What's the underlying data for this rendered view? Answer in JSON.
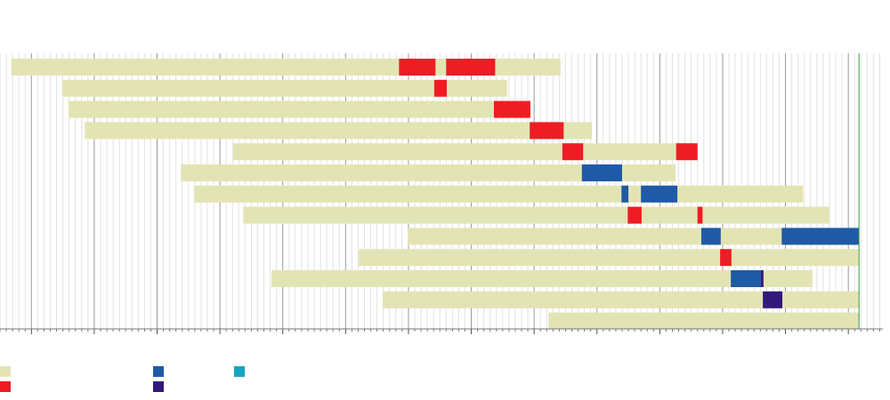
{
  "chart_data": {
    "type": "gantt",
    "xlim": [
      0,
      140.5
    ],
    "xticks": [
      5,
      15,
      25,
      35,
      45,
      55,
      65,
      75,
      85,
      95,
      105,
      115,
      125,
      135
    ],
    "xminorticks": [
      0,
      1,
      2,
      3,
      4,
      6,
      7,
      8,
      9,
      10,
      11,
      12,
      13,
      14,
      16,
      17,
      18,
      19,
      20,
      21,
      22,
      23,
      24,
      26,
      27,
      28,
      29,
      30,
      31,
      32,
      33,
      34,
      36,
      37,
      38,
      39,
      40,
      41,
      42,
      43,
      44,
      46,
      47,
      48,
      49,
      50,
      51,
      52,
      53,
      54,
      56,
      57,
      58,
      59,
      60,
      61,
      62,
      63,
      64,
      66,
      67,
      68,
      69,
      70,
      71,
      72,
      73,
      74,
      76,
      77,
      78,
      79,
      80,
      81,
      82,
      83,
      84,
      86,
      87,
      88,
      89,
      90,
      91,
      92,
      93,
      94,
      96,
      97,
      98,
      99,
      100,
      101,
      102,
      103,
      104,
      106,
      107,
      108,
      109,
      110,
      111,
      112,
      113,
      114,
      116,
      117,
      118,
      119,
      120,
      121,
      122,
      123,
      124,
      126,
      127,
      128,
      129,
      130,
      131,
      132,
      133,
      134,
      136,
      137,
      138,
      139,
      140
    ],
    "grid": true,
    "marker": 136.7,
    "marker_color": "#2e9e3e",
    "base_color": "#e3e4b4",
    "legend": [
      "#e3e4b4",
      "#ee1c24",
      "#1f5aa6",
      "#33197a",
      "#1aa3c1"
    ],
    "rows": [
      {
        "start": 1.8,
        "end": 89.2,
        "segments": [
          {
            "start": 63.5,
            "end": 69.3,
            "color": "#ee1c24"
          },
          {
            "start": 71.0,
            "end": 78.8,
            "color": "#ee1c24"
          }
        ]
      },
      {
        "start": 9.9,
        "end": 80.7,
        "segments": [
          {
            "start": 69.1,
            "end": 71.1,
            "color": "#ee1c24"
          }
        ]
      },
      {
        "start": 10.9,
        "end": 84.4,
        "segments": [
          {
            "start": 78.6,
            "end": 84.4,
            "color": "#ee1c24"
          }
        ]
      },
      {
        "start": 13.5,
        "end": 94.2,
        "segments": [
          {
            "start": 84.3,
            "end": 89.7,
            "color": "#ee1c24"
          }
        ]
      },
      {
        "start": 37.1,
        "end": 111.0,
        "segments": [
          {
            "start": 89.5,
            "end": 92.8,
            "color": "#ee1c24"
          },
          {
            "start": 107.6,
            "end": 111.0,
            "color": "#ee1c24"
          }
        ]
      },
      {
        "start": 28.8,
        "end": 107.5,
        "segments": [
          {
            "start": 92.6,
            "end": 99.0,
            "color": "#1f5aa6"
          }
        ]
      },
      {
        "start": 30.9,
        "end": 127.8,
        "segments": [
          {
            "start": 98.9,
            "end": 100.0,
            "color": "#1f5aa6"
          },
          {
            "start": 102.0,
            "end": 107.8,
            "color": "#1f5aa6"
          }
        ]
      },
      {
        "start": 38.7,
        "end": 132.0,
        "segments": [
          {
            "start": 99.9,
            "end": 102.1,
            "color": "#ee1c24"
          },
          {
            "start": 111.0,
            "end": 111.8,
            "color": "#ee1c24"
          }
        ]
      },
      {
        "start": 64.9,
        "end": 136.7,
        "segments": [
          {
            "start": 111.6,
            "end": 114.7,
            "color": "#1f5aa6"
          },
          {
            "start": 124.4,
            "end": 136.7,
            "color": "#1f5aa6"
          }
        ]
      },
      {
        "start": 57.1,
        "end": 136.7,
        "segments": [
          {
            "start": 114.6,
            "end": 116.4,
            "color": "#ee1c24"
          }
        ]
      },
      {
        "start": 43.2,
        "end": 129.3,
        "segments": [
          {
            "start": 116.3,
            "end": 121.1,
            "color": "#1f5aa6"
          },
          {
            "start": 121.1,
            "end": 121.5,
            "color": "#33197a"
          }
        ]
      },
      {
        "start": 60.9,
        "end": 136.7,
        "segments": [
          {
            "start": 121.4,
            "end": 124.5,
            "color": "#33197a"
          }
        ]
      },
      {
        "start": 87.3,
        "end": 136.7,
        "segments": []
      }
    ]
  }
}
